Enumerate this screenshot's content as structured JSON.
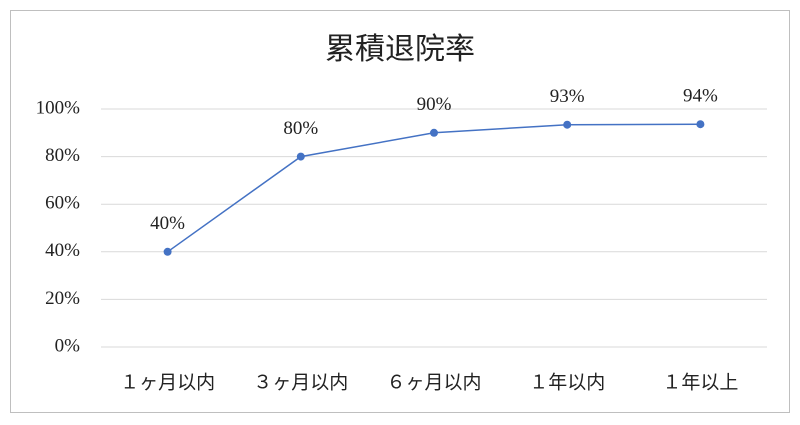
{
  "chart_data": {
    "type": "line",
    "title": "累積退院率",
    "categories": [
      "１ヶ月以内",
      "３ヶ月以内",
      "６ヶ月以内",
      "１年以内",
      "１年以上"
    ],
    "series": [
      {
        "name": "累積退院率",
        "color": "#4472c4",
        "values": [
          40,
          80,
          90,
          93.4,
          93.6
        ],
        "value_labels": [
          "40%",
          "80%",
          "90%",
          "93%",
          "94%"
        ]
      }
    ],
    "ylim": [
      0,
      100
    ],
    "yticks": [
      {
        "value": 0,
        "label": "0%"
      },
      {
        "value": 20,
        "label": "20%"
      },
      {
        "value": 40,
        "label": "40%"
      },
      {
        "value": 60,
        "label": "60%"
      },
      {
        "value": 80,
        "label": "80%"
      },
      {
        "value": 100,
        "label": "100%"
      }
    ],
    "grid": true
  }
}
